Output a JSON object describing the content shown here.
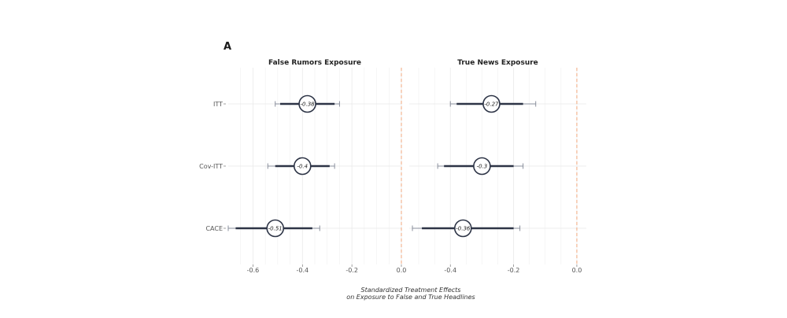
{
  "chart_data": {
    "type": "forest",
    "panel_letter": "A",
    "xlabel": [
      "Standardized Treatment Effects",
      "on Exposure to False and True Headlines"
    ],
    "categories": [
      "ITT",
      "Cov-ITT",
      "CACE"
    ],
    "colors": {
      "point": "#2d3446",
      "ci95": "#8a8f9c",
      "reference_line": "#f2a77c",
      "grid": "#ececec"
    },
    "panels": [
      {
        "title": "False Rumors Exposure",
        "xlim": [
          -0.7,
          0.0
        ],
        "ticks": [
          -0.6,
          -0.4,
          -0.2,
          0.0
        ],
        "tick_labels": [
          "-0.6",
          "-0.4",
          "-0.2",
          "0.0"
        ],
        "points": [
          {
            "category": "ITT",
            "estimate": -0.38,
            "label": "-0.38",
            "ci90": [
              -0.49,
              -0.27
            ],
            "ci95": [
              -0.51,
              -0.25
            ]
          },
          {
            "category": "Cov-ITT",
            "estimate": -0.4,
            "label": "-0.4",
            "ci90": [
              -0.51,
              -0.29
            ],
            "ci95": [
              -0.54,
              -0.27
            ]
          },
          {
            "category": "CACE",
            "estimate": -0.51,
            "label": "-0.51",
            "ci90": [
              -0.67,
              -0.36
            ],
            "ci95": [
              -0.7,
              -0.33
            ]
          }
        ]
      },
      {
        "title": "True News Exposure",
        "xlim": [
          -0.53,
          0.03
        ],
        "ticks": [
          -0.4,
          -0.2,
          0.0
        ],
        "tick_labels": [
          "-0.4",
          "-0.2",
          "0.0"
        ],
        "points": [
          {
            "category": "ITT",
            "estimate": -0.27,
            "label": "-0.27",
            "ci90": [
              -0.38,
              -0.17
            ],
            "ci95": [
              -0.4,
              -0.13
            ]
          },
          {
            "category": "Cov-ITT",
            "estimate": -0.3,
            "label": "-0.3",
            "ci90": [
              -0.42,
              -0.2
            ],
            "ci95": [
              -0.44,
              -0.17
            ]
          },
          {
            "category": "CACE",
            "estimate": -0.36,
            "label": "-0.36",
            "ci90": [
              -0.49,
              -0.2
            ],
            "ci95": [
              -0.52,
              -0.18
            ]
          }
        ]
      }
    ]
  }
}
